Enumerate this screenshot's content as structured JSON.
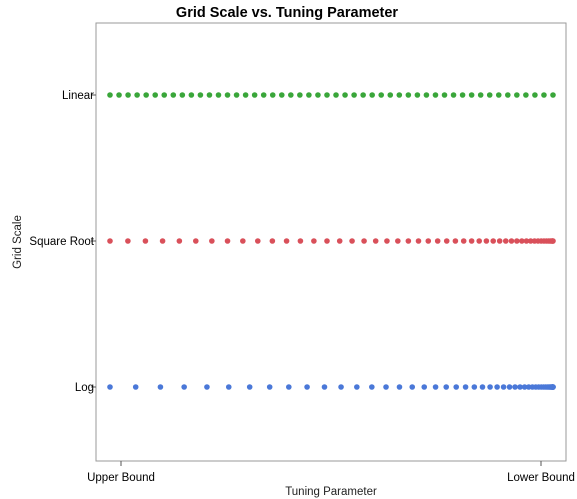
{
  "chart_data": {
    "type": "scatter",
    "title": "Grid Scale vs. Tuning Parameter",
    "xlabel": "Tuning Parameter",
    "ylabel": "Grid Scale",
    "x_ticks": [
      "Upper Bound",
      "Lower Bound"
    ],
    "y_categories": [
      "Log",
      "Square Root",
      "Linear"
    ],
    "points_per_series": 50,
    "grid": false,
    "legend": "none",
    "series": [
      {
        "category": "Linear",
        "spacing": "linear",
        "color": "#3aa63a"
      },
      {
        "category": "Square Root",
        "spacing": "sqrt",
        "color": "#d9505a"
      },
      {
        "category": "Log",
        "spacing": "log",
        "color": "#4a78d8"
      }
    ]
  }
}
